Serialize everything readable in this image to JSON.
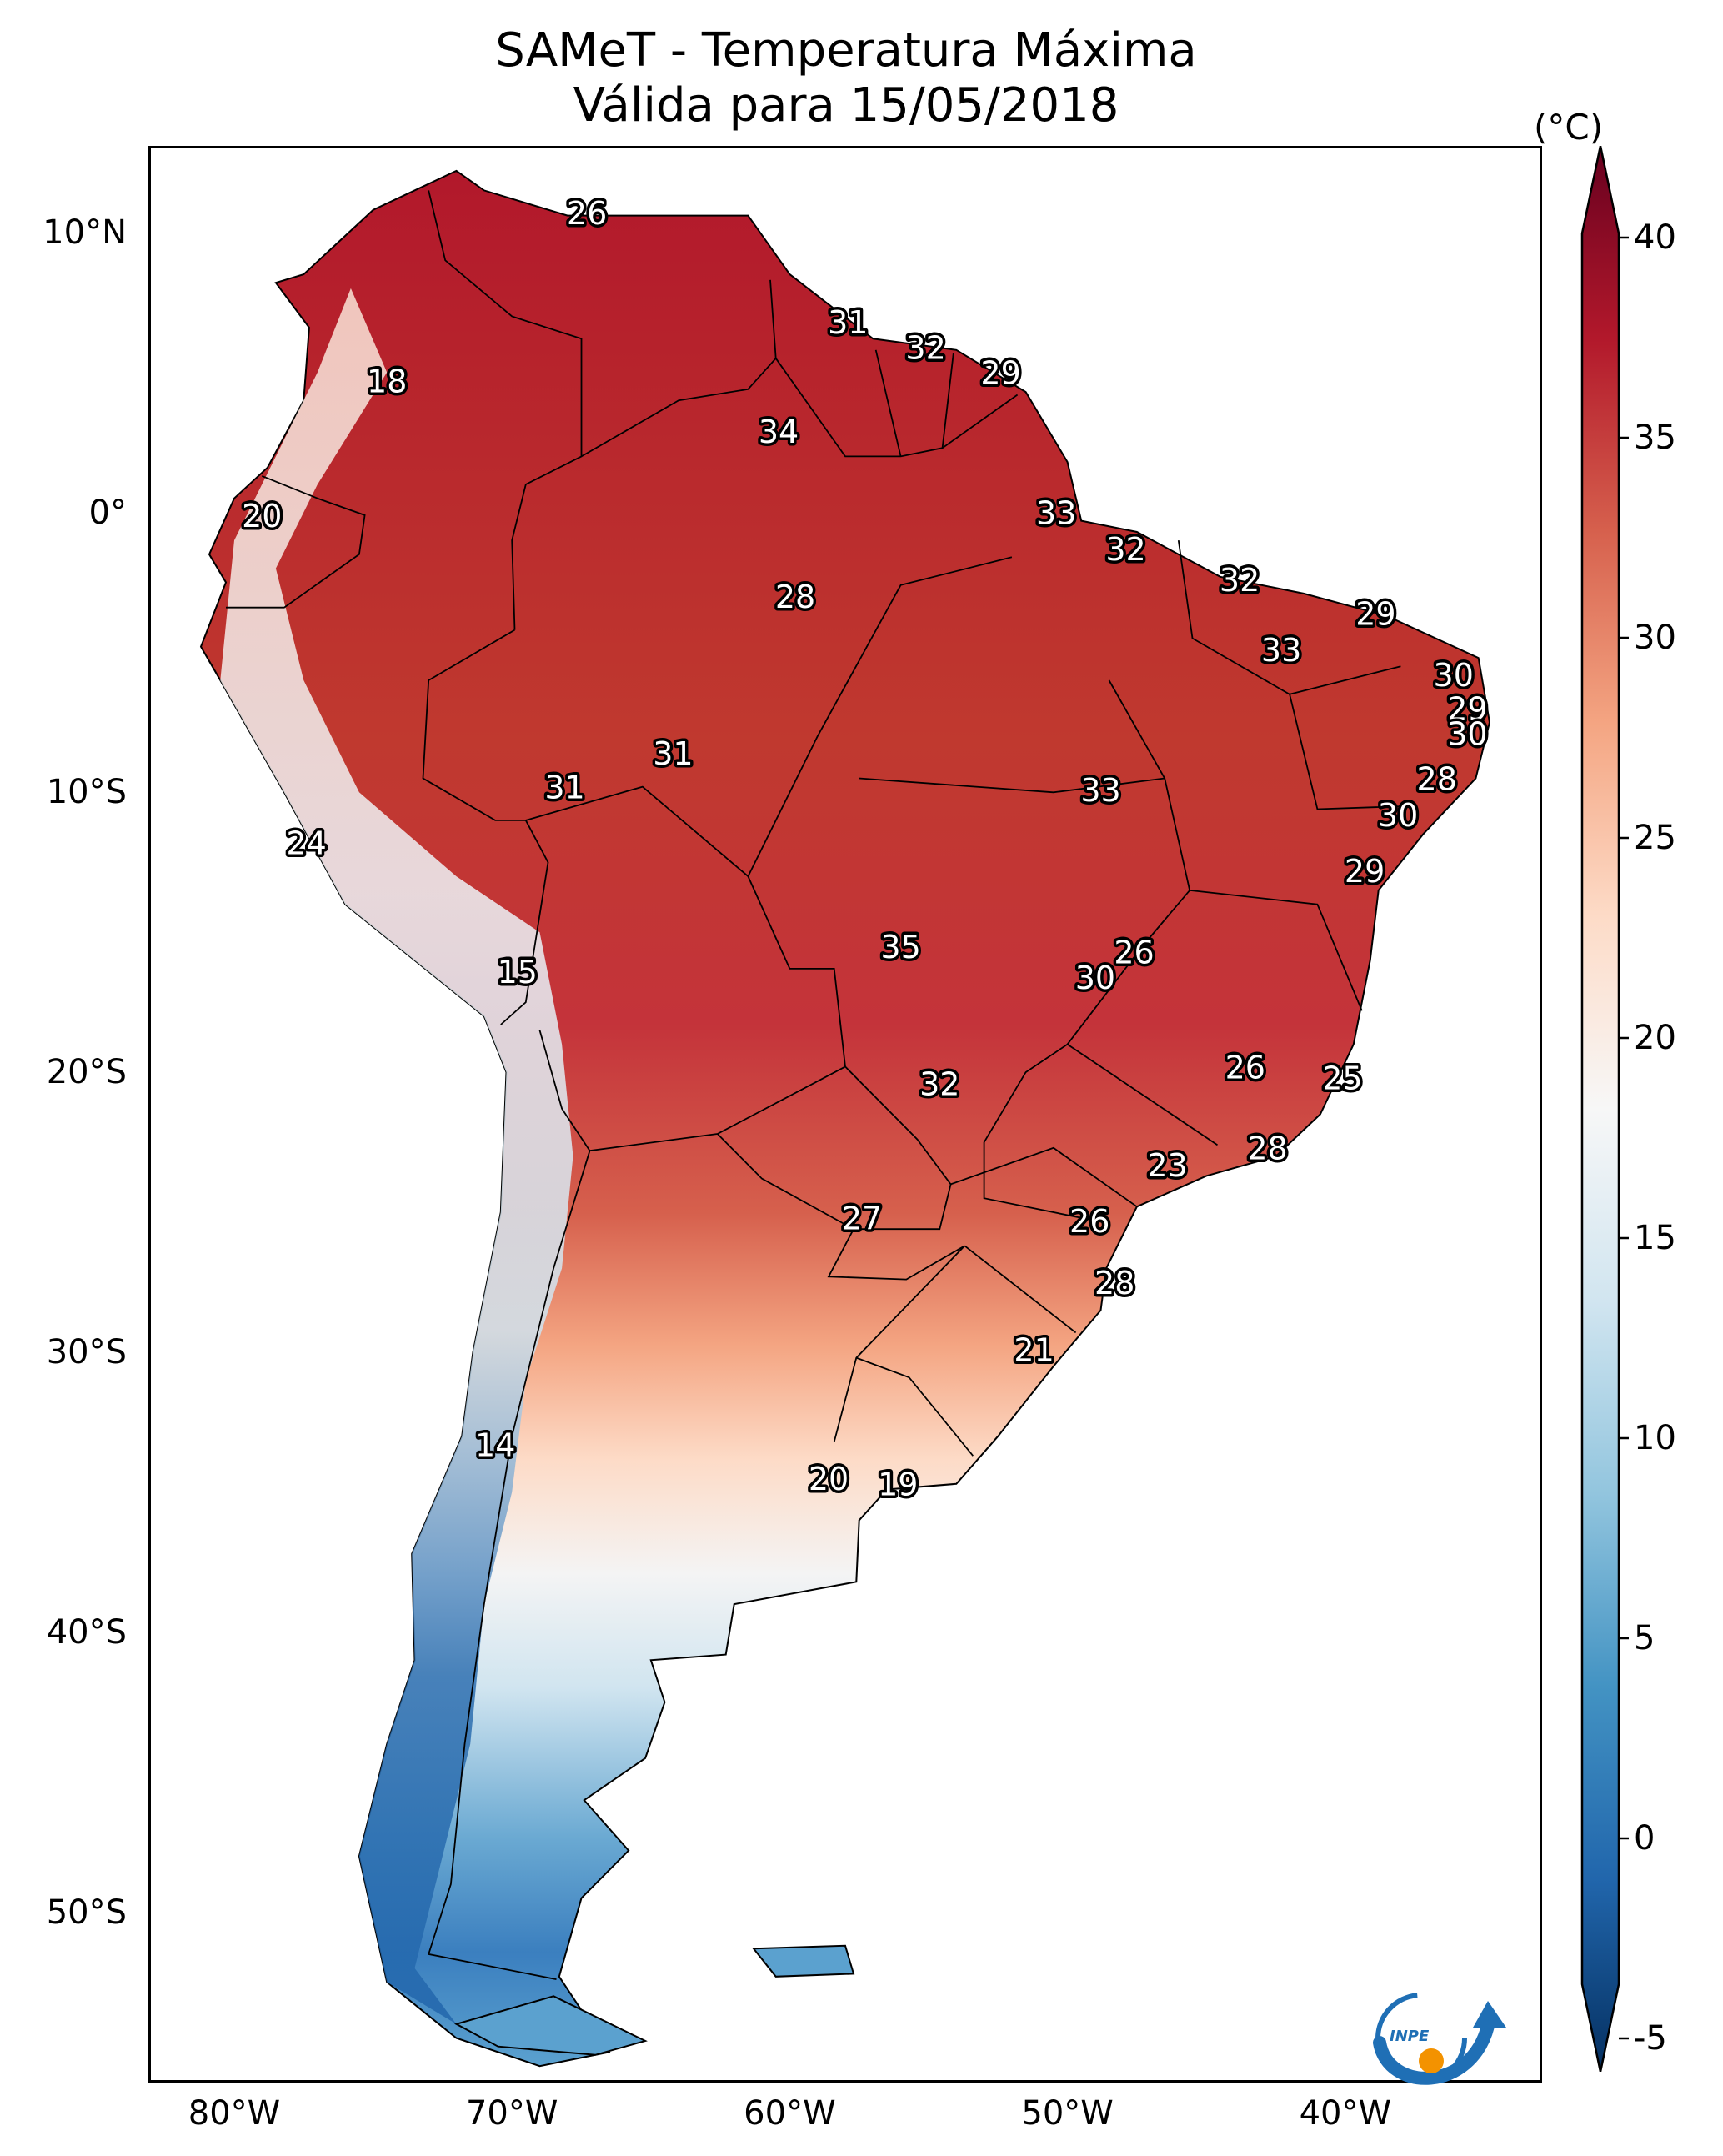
{
  "title": {
    "line1": "SAMeT - Temperatura Máxima",
    "line2": "Válida para 15/05/2018"
  },
  "axes": {
    "lat_ticks": [
      "10°N",
      "0°",
      "10°S",
      "20°S",
      "30°S",
      "40°S",
      "50°S"
    ],
    "lat_values": [
      10,
      0,
      -10,
      -20,
      -30,
      -40,
      -50
    ],
    "lon_ticks": [
      "80°W",
      "70°W",
      "60°W",
      "50°W",
      "40°W"
    ],
    "lon_values": [
      -80,
      -70,
      -60,
      -50,
      -40
    ],
    "lon_range": [
      -83,
      -33
    ],
    "lat_range": [
      -56,
      13
    ]
  },
  "colorbar": {
    "unit": "(°C)",
    "ticks": [
      "40",
      "35",
      "30",
      "25",
      "20",
      "15",
      "10",
      "5",
      "0",
      "-5"
    ],
    "tick_values": [
      40,
      35,
      30,
      25,
      20,
      15,
      10,
      5,
      0,
      -5
    ],
    "range": [
      -5,
      40
    ],
    "colormap": [
      "#053061",
      "#2166ac",
      "#4393c3",
      "#92c5de",
      "#d1e5f0",
      "#f7f7f7",
      "#fddbc7",
      "#f4a582",
      "#d6604d",
      "#b2182b",
      "#67001f"
    ],
    "extend": "both"
  },
  "stations": [
    {
      "label": "26",
      "lon": -67.3,
      "lat": 10.6
    },
    {
      "label": "31",
      "lon": -57.9,
      "lat": 6.7
    },
    {
      "label": "32",
      "lon": -55.1,
      "lat": 5.8
    },
    {
      "label": "29",
      "lon": -52.4,
      "lat": 4.9
    },
    {
      "label": "18",
      "lon": -74.5,
      "lat": 4.6
    },
    {
      "label": "34",
      "lon": -60.4,
      "lat": 2.8
    },
    {
      "label": "20",
      "lon": -79.0,
      "lat": -0.2
    },
    {
      "label": "33",
      "lon": -50.4,
      "lat": -0.1
    },
    {
      "label": "32",
      "lon": -47.9,
      "lat": -1.4
    },
    {
      "label": "32",
      "lon": -43.8,
      "lat": -2.5
    },
    {
      "label": "28",
      "lon": -59.8,
      "lat": -3.1
    },
    {
      "label": "29",
      "lon": -38.9,
      "lat": -3.7
    },
    {
      "label": "33",
      "lon": -42.3,
      "lat": -5.0
    },
    {
      "label": "30",
      "lon": -36.1,
      "lat": -5.9
    },
    {
      "label": "29",
      "lon": -35.6,
      "lat": -7.1
    },
    {
      "label": "30",
      "lon": -35.6,
      "lat": -8.0
    },
    {
      "label": "31",
      "lon": -64.2,
      "lat": -8.7
    },
    {
      "label": "28",
      "lon": -36.7,
      "lat": -9.6
    },
    {
      "label": "31",
      "lon": -68.1,
      "lat": -9.9
    },
    {
      "label": "33",
      "lon": -48.8,
      "lat": -10.0
    },
    {
      "label": "30",
      "lon": -38.1,
      "lat": -10.9
    },
    {
      "label": "24",
      "lon": -77.4,
      "lat": -11.9
    },
    {
      "label": "29",
      "lon": -39.3,
      "lat": -12.9
    },
    {
      "label": "35",
      "lon": -56.0,
      "lat": -15.6
    },
    {
      "label": "26",
      "lon": -47.6,
      "lat": -15.8
    },
    {
      "label": "15",
      "lon": -69.8,
      "lat": -16.5
    },
    {
      "label": "30",
      "lon": -49.0,
      "lat": -16.7
    },
    {
      "label": "26",
      "lon": -43.6,
      "lat": -19.9
    },
    {
      "label": "25",
      "lon": -40.1,
      "lat": -20.3
    },
    {
      "label": "32",
      "lon": -54.6,
      "lat": -20.5
    },
    {
      "label": "28",
      "lon": -42.8,
      "lat": -22.8
    },
    {
      "label": "23",
      "lon": -46.4,
      "lat": -23.4
    },
    {
      "label": "27",
      "lon": -57.4,
      "lat": -25.3
    },
    {
      "label": "26",
      "lon": -49.2,
      "lat": -25.4
    },
    {
      "label": "28",
      "lon": -48.3,
      "lat": -27.6
    },
    {
      "label": "21",
      "lon": -51.2,
      "lat": -30.0
    },
    {
      "label": "14",
      "lon": -70.6,
      "lat": -33.4
    },
    {
      "label": "20",
      "lon": -58.6,
      "lat": -34.6
    },
    {
      "label": "19",
      "lon": -56.1,
      "lat": -34.8
    }
  ]
}
